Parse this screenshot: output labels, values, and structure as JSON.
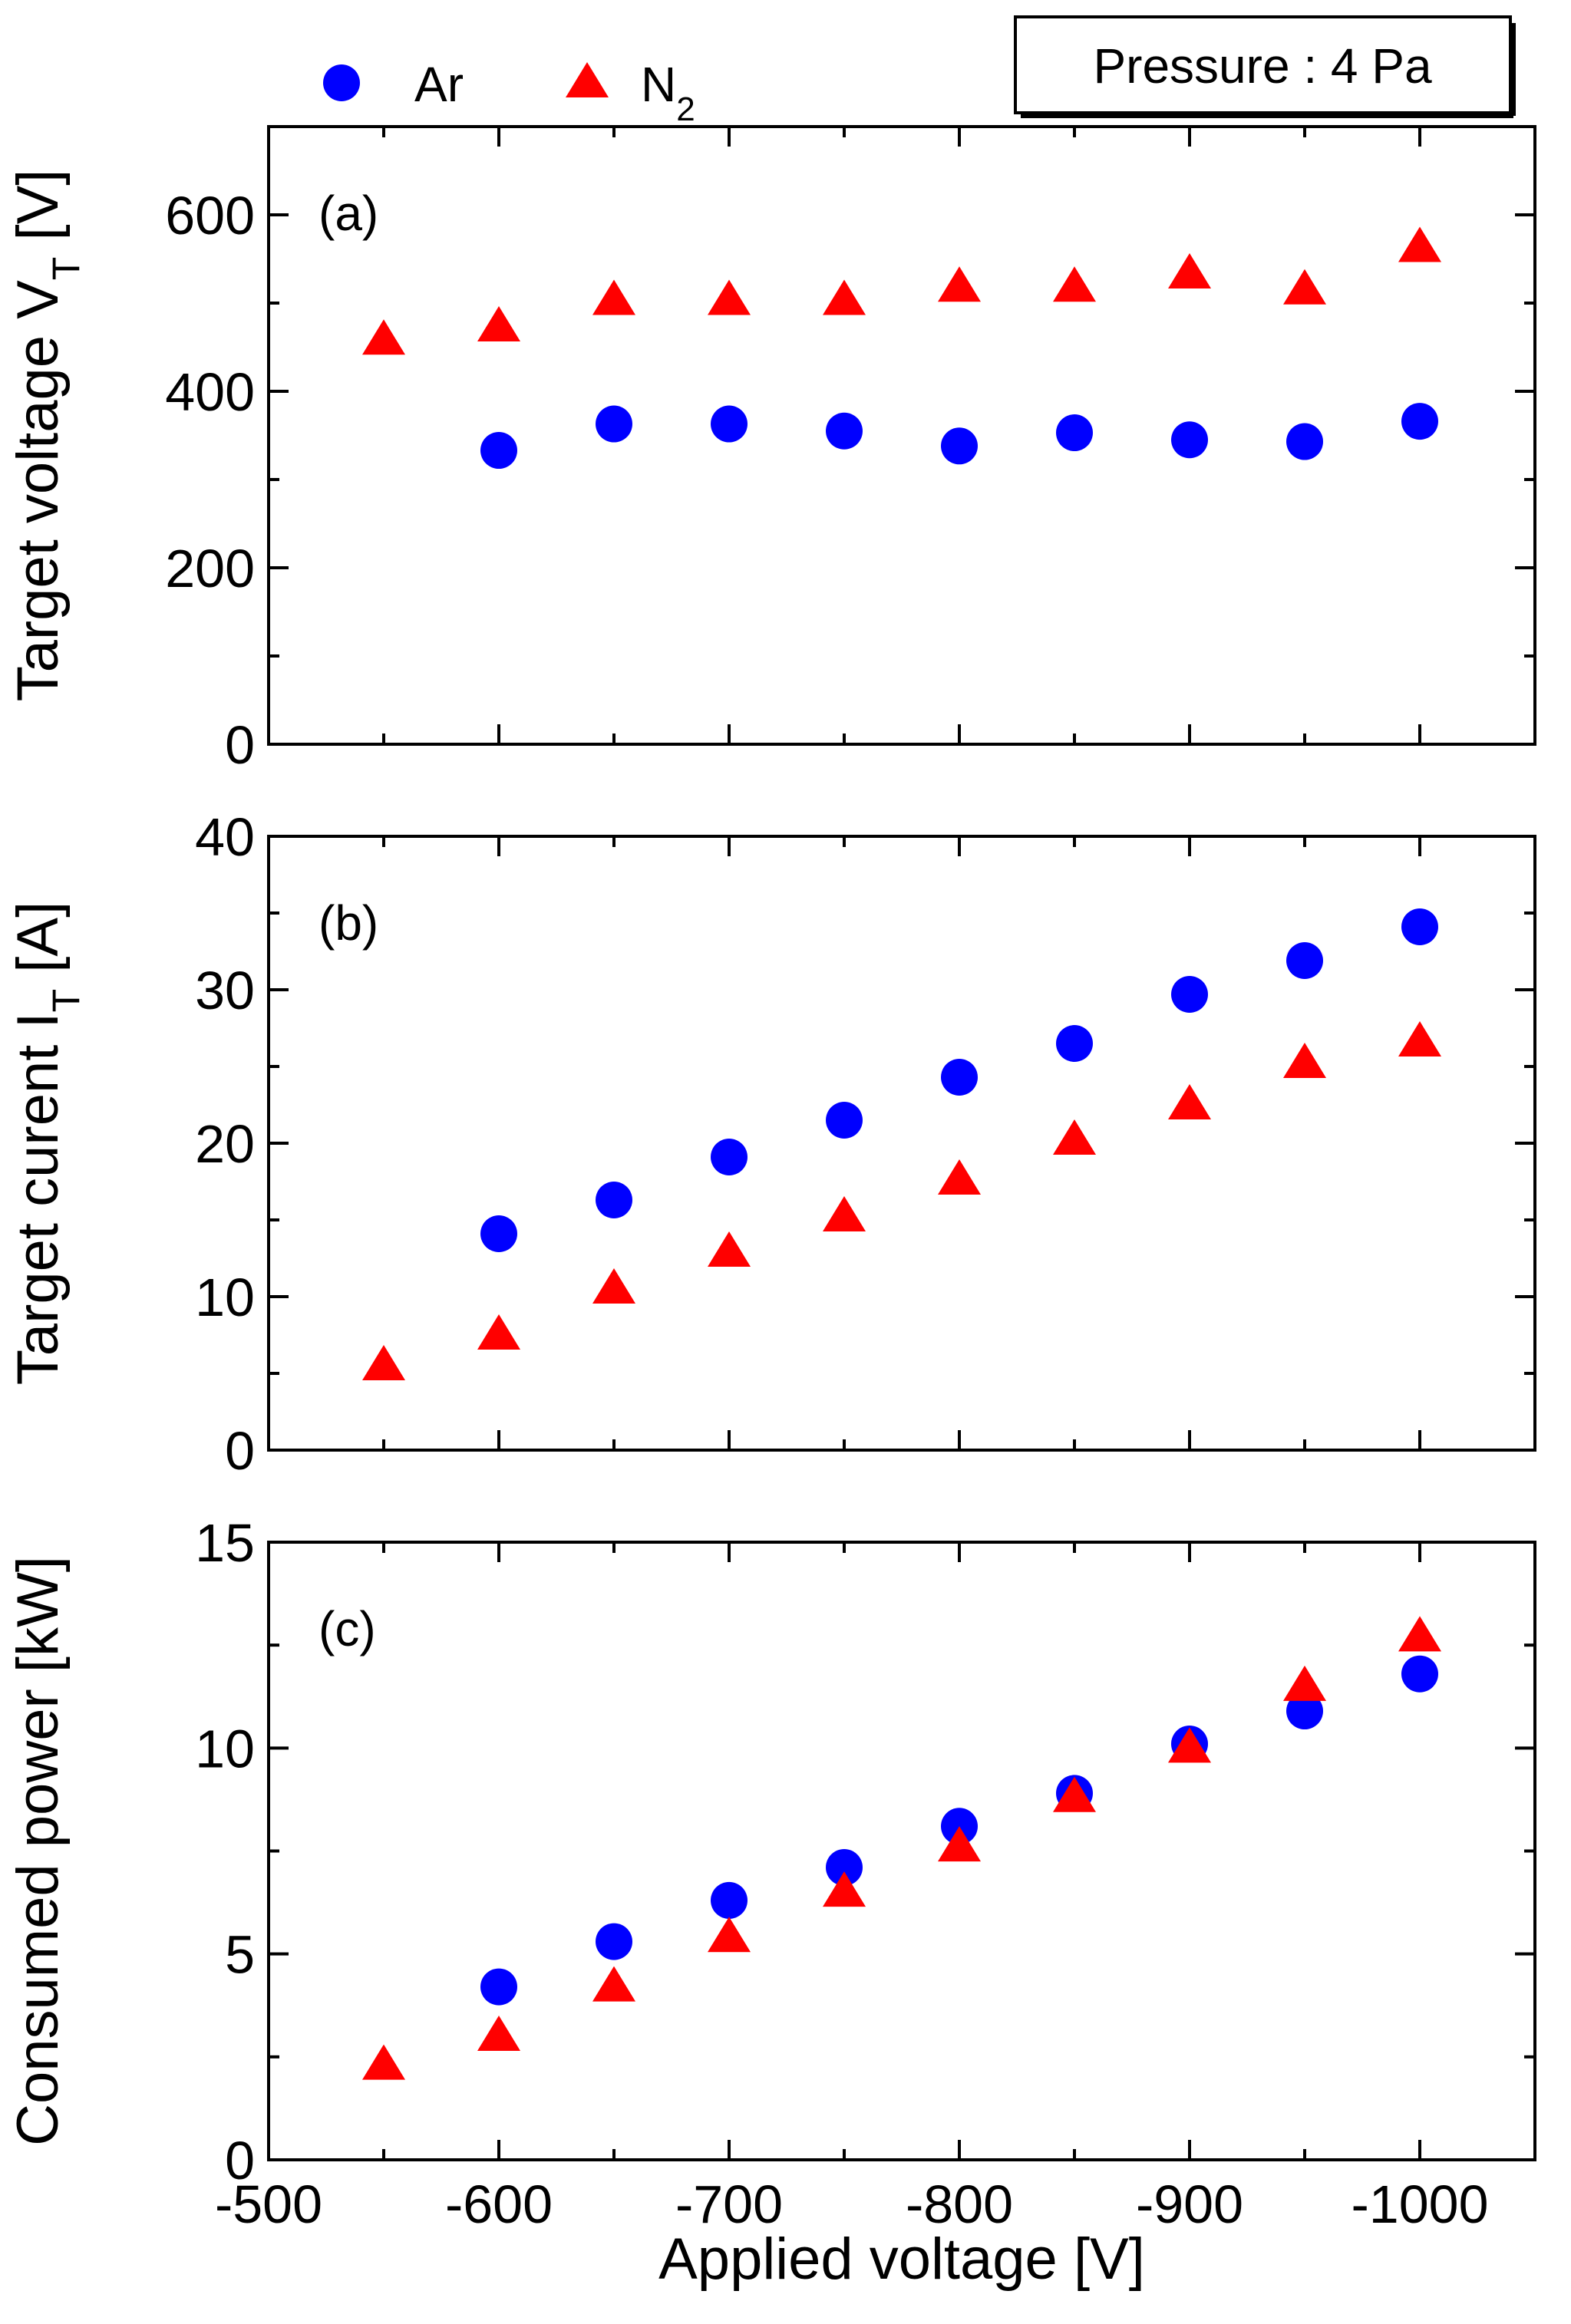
{
  "chart_data": {
    "type": "scatter",
    "annotation": "Pressure : 4 Pa",
    "xlabel": "Applied voltage [V]",
    "xlim": [
      -500,
      -1050
    ],
    "xticks": [
      -500,
      -600,
      -700,
      -800,
      -900,
      -1000
    ],
    "xtick_labels": [
      "-500",
      "-600",
      "-700",
      "-800",
      "-900",
      "-1000"
    ],
    "legend": [
      {
        "name": "Ar",
        "sub": "",
        "marker": "circle",
        "color": "#0000ff"
      },
      {
        "name": "N",
        "sub": "2",
        "marker": "triangle",
        "color": "#ff0000"
      }
    ],
    "panels": [
      {
        "tag": "(a)",
        "ylabel": "Target voltage V",
        "ylabel_sub": "T",
        "ylabel_unit": " [V]",
        "ylim": [
          0,
          700
        ],
        "yticks": [
          0,
          200,
          400,
          600
        ],
        "series": [
          {
            "name": "Ar",
            "x": [
              -600,
              -650,
              -700,
              -750,
              -800,
              -850,
              -900,
              -950,
              -1000
            ],
            "y": [
              333,
              363,
              363,
              355,
              338,
              353,
              345,
              343,
              366
            ]
          },
          {
            "name": "N2",
            "x": [
              -550,
              -600,
              -650,
              -700,
              -750,
              -800,
              -850,
              -900,
              -950,
              -1000
            ],
            "y": [
              458,
              473,
              503,
              503,
              503,
              518,
              518,
              533,
              515,
              563
            ]
          }
        ]
      },
      {
        "tag": "(b)",
        "ylabel": "Target curent I",
        "ylabel_sub": "T",
        "ylabel_unit": " [A]",
        "ylim": [
          0,
          40
        ],
        "yticks": [
          0,
          10,
          20,
          30,
          40
        ],
        "series": [
          {
            "name": "Ar",
            "x": [
              -600,
              -650,
              -700,
              -750,
              -800,
              -850,
              -900,
              -950,
              -1000
            ],
            "y": [
              14.1,
              16.3,
              19.1,
              21.5,
              24.3,
              26.5,
              29.7,
              31.9,
              34.1
            ]
          },
          {
            "name": "N2",
            "x": [
              -550,
              -600,
              -650,
              -700,
              -750,
              -800,
              -850,
              -900,
              -950,
              -1000
            ],
            "y": [
              5.5,
              7.5,
              10.5,
              12.9,
              15.2,
              17.6,
              20.2,
              22.5,
              25.2,
              26.6
            ]
          }
        ]
      },
      {
        "tag": "(c)",
        "ylabel": "Consumed power [kW]",
        "ylabel_sub": "",
        "ylabel_unit": "",
        "ylim": [
          0,
          15
        ],
        "yticks": [
          0,
          5,
          10,
          15
        ],
        "series": [
          {
            "name": "Ar",
            "x": [
              -600,
              -650,
              -700,
              -750,
              -800,
              -850,
              -900,
              -950,
              -1000
            ],
            "y": [
              4.2,
              5.3,
              6.3,
              7.1,
              8.1,
              8.9,
              10.1,
              10.9,
              11.8
            ]
          },
          {
            "name": "N2",
            "x": [
              -550,
              -600,
              -650,
              -700,
              -750,
              -800,
              -850,
              -900,
              -950,
              -1000
            ],
            "y": [
              2.3,
              3.0,
              4.2,
              5.4,
              6.5,
              7.6,
              8.8,
              10.0,
              11.5,
              12.7
            ]
          }
        ]
      }
    ]
  }
}
